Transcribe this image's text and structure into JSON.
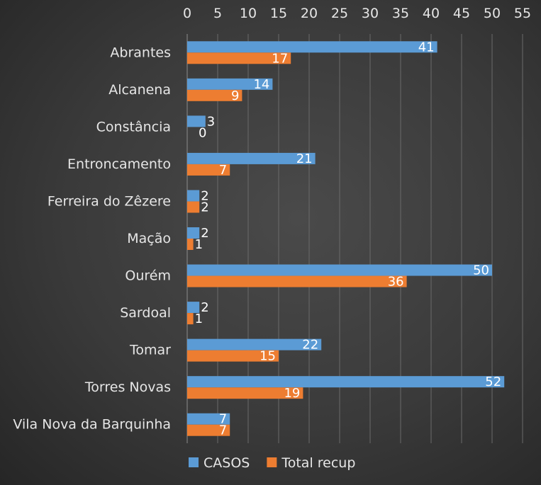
{
  "chart_data": {
    "type": "bar",
    "orientation": "horizontal",
    "categories": [
      "Abrantes",
      "Alcanena",
      "Constância",
      "Entroncamento",
      "Ferreira do Zêzere",
      "Mação",
      "Ourém",
      "Sardoal",
      "Tomar",
      "Torres Novas",
      "Vila Nova da Barquinha"
    ],
    "series": [
      {
        "name": "CASOS",
        "color": "#5b9bd5",
        "values": [
          41,
          14,
          3,
          21,
          2,
          2,
          50,
          2,
          22,
          52,
          7
        ]
      },
      {
        "name": "Total recup",
        "color": "#ed7d31",
        "values": [
          17,
          9,
          0,
          7,
          2,
          1,
          36,
          1,
          15,
          19,
          7
        ]
      }
    ],
    "xlim": [
      0,
      55
    ],
    "xticks": [
      0,
      5,
      10,
      15,
      20,
      25,
      30,
      35,
      40,
      45,
      50,
      55
    ],
    "x_axis_position": "top",
    "grid": true,
    "legend_position": "bottom",
    "title": "",
    "xlabel": "",
    "ylabel": ""
  }
}
